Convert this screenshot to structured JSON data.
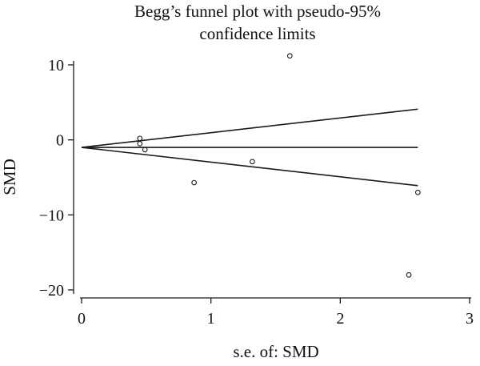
{
  "chart_data": {
    "type": "scatter",
    "title_lines": [
      "Begg’s funnel plot with pseudo-95%",
      "confidence limits"
    ],
    "xlabel": "s.e. of: SMD",
    "ylabel": "SMD",
    "xlim": [
      0,
      3
    ],
    "ylim": [
      -20,
      10
    ],
    "x_ticks": [
      {
        "value": 0,
        "label": "0"
      },
      {
        "value": 1,
        "label": "1"
      },
      {
        "value": 2,
        "label": "2"
      },
      {
        "value": 3,
        "label": "3"
      }
    ],
    "y_ticks": [
      {
        "value": 10,
        "label": "10"
      },
      {
        "value": 0,
        "label": "0"
      },
      {
        "value": -10,
        "label": "−10"
      },
      {
        "value": -20,
        "label": "−20"
      }
    ],
    "points": [
      {
        "x": 0.45,
        "y": 0.2
      },
      {
        "x": 0.45,
        "y": -0.5
      },
      {
        "x": 0.49,
        "y": -1.3
      },
      {
        "x": 0.87,
        "y": -5.7
      },
      {
        "x": 1.32,
        "y": -2.9
      },
      {
        "x": 1.61,
        "y": 11.2
      },
      {
        "x": 2.53,
        "y": -18.0
      },
      {
        "x": 2.6,
        "y": -7.0
      }
    ],
    "summary_line": {
      "y": -1.0,
      "x_range": [
        0,
        2.6
      ]
    },
    "funnel_limits": {
      "upper": [
        {
          "x": 0,
          "y": -1.0
        },
        {
          "x": 2.6,
          "y": 4.1
        }
      ],
      "lower": [
        {
          "x": 0,
          "y": -1.0
        },
        {
          "x": 2.6,
          "y": -6.1
        }
      ]
    },
    "grid": false,
    "colors": {
      "line": "#1a1a1a",
      "marker": "#1a1a1a",
      "background": "#ffffff"
    }
  }
}
